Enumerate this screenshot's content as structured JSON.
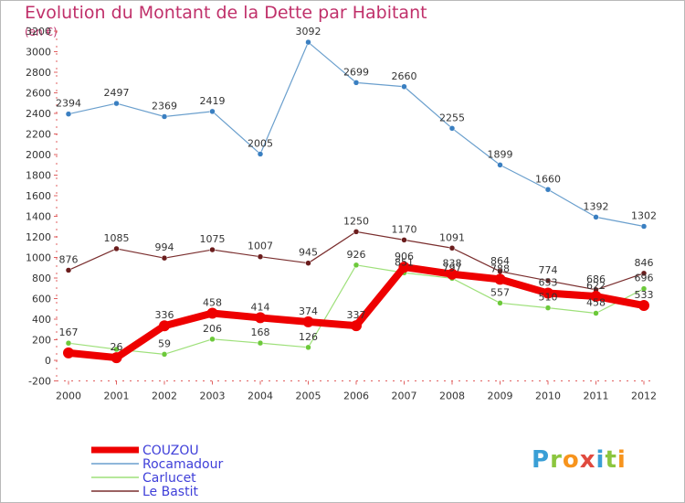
{
  "header": {
    "title": "Evolution du Montant de la Dette par Habitant",
    "unit": "(en €)"
  },
  "brand": {
    "letters": [
      "P",
      "r",
      "o",
      "x",
      "i",
      "t",
      "i"
    ],
    "colors": [
      "#3a9fd6",
      "#8cc63f",
      "#f7941d",
      "#e04a3f",
      "#3a9fd6",
      "#8cc63f",
      "#f7941d"
    ]
  },
  "chart_data": {
    "type": "line",
    "title": "Evolution du Montant de la Dette par Habitant",
    "ylabel": "(en €)",
    "xlabel": "",
    "x": [
      "2000",
      "2001",
      "2002",
      "2003",
      "2004",
      "2005",
      "2006",
      "2007",
      "2008",
      "2009",
      "2010",
      "2011",
      "2012"
    ],
    "ylim": [
      -200,
      3200
    ],
    "yticks": [
      -200,
      0,
      200,
      400,
      600,
      800,
      1000,
      1200,
      1400,
      1600,
      1800,
      2000,
      2200,
      2400,
      2600,
      2800,
      3000,
      3200
    ],
    "grid": false,
    "legend_position": "bottom-left",
    "series": [
      {
        "name": "Rocamadour",
        "color": "#6a9fcd",
        "marker": "#3a7fc1",
        "width": 1.2,
        "values": [
          2394,
          2497,
          2369,
          2419,
          2005,
          3092,
          2699,
          2660,
          2255,
          1899,
          1660,
          1392,
          1302
        ]
      },
      {
        "name": "Le Bastit",
        "color": "#7a2e2e",
        "marker": "#6b1d1d",
        "width": 1.2,
        "values": [
          876,
          1085,
          994,
          1075,
          1007,
          945,
          1250,
          1170,
          1091,
          864,
          774,
          686,
          846
        ]
      },
      {
        "name": "Carlucet",
        "color": "#9ee07a",
        "marker": "#6cc93a",
        "width": 1.2,
        "values": [
          167,
          107,
          59,
          206,
          168,
          126,
          926,
          851,
          797,
          557,
          510,
          458,
          696
        ]
      },
      {
        "name": "COUZOU",
        "color": "#ee0000",
        "marker": "#ee0000",
        "width": 8,
        "values": [
          72,
          26,
          336,
          458,
          414,
          374,
          337,
          906,
          838,
          788,
          653,
          622,
          533
        ]
      }
    ],
    "data_labels": {
      "Rocamadour": [
        "2394",
        "2497",
        "2369",
        "2419",
        "2005",
        "3092",
        "2699",
        "2660",
        "2255",
        "1899",
        "1660",
        "1392",
        "1302"
      ],
      "Le Bastit": [
        "876",
        "1085",
        "994",
        "1075",
        "1007",
        "945",
        "1250",
        "1170",
        "1091",
        "864",
        "774",
        "686",
        "846"
      ],
      "Carlucet": [
        "167",
        "",
        "59",
        "206",
        "168",
        "126",
        "926",
        "851",
        "797",
        "557",
        "510",
        "458",
        "696"
      ],
      "COUZOU": [
        "",
        "26",
        "336",
        "458",
        "414",
        "374",
        "337",
        "906",
        "838",
        "788",
        "653",
        "622",
        "533"
      ]
    },
    "legend_order": [
      "COUZOU",
      "Rocamadour",
      "Carlucet",
      "Le Bastit"
    ]
  }
}
